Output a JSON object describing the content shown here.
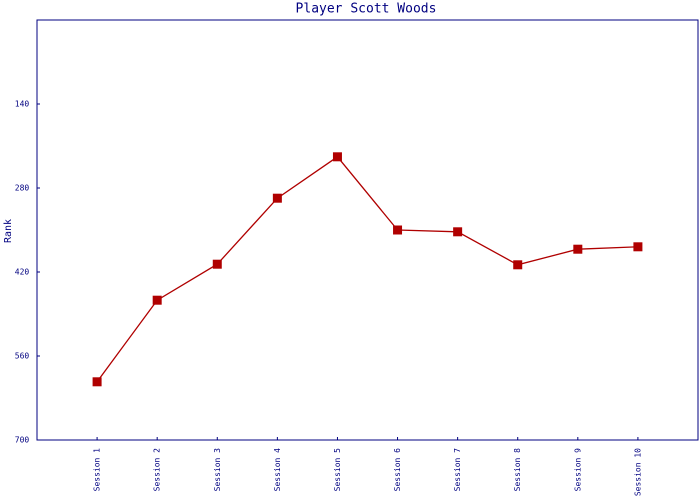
{
  "chart_data": {
    "type": "line",
    "title": "Player Scott Woods",
    "y_label": "Rank",
    "categories": [
      "Session 1",
      "Session 2",
      "Session 3",
      "Session 4",
      "Session 5",
      "Session 6",
      "Session 7",
      "Session 8",
      "Session 9",
      "Session 10"
    ],
    "series": [
      {
        "name": "Rank",
        "color": "#b00000",
        "values": [
          603,
          467,
          407,
          297,
          228,
          350,
          353,
          408,
          382,
          378
        ]
      }
    ],
    "ylim": [
      700,
      0
    ],
    "yticks": [
      140,
      280,
      420,
      560,
      700
    ],
    "grid": false
  }
}
